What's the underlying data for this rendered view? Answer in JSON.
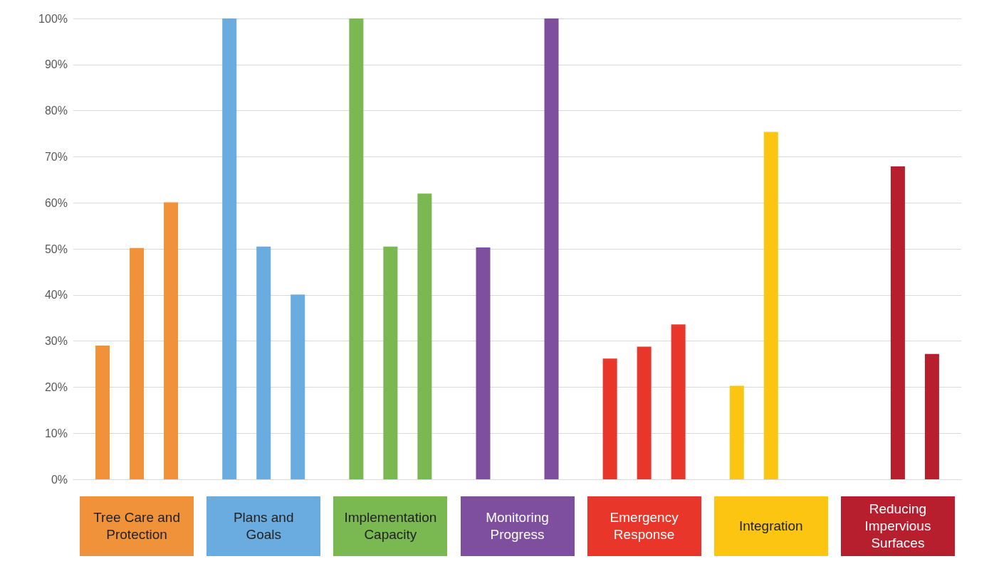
{
  "chart_data": {
    "type": "bar",
    "categories": [
      "Tree Care and\nProtection",
      "Plans and\nGoals",
      "Implementation\nCapacity",
      "Monitoring\nProgress",
      "Emergency\nResponse",
      "Integration",
      "Reducing\nImpervious\nSurfaces"
    ],
    "series": [
      {
        "colors": [
          "#f0923a",
          "#6aace0",
          "#7ab851",
          "#7d4f9e",
          "#e8372a",
          "#fcc512",
          "#b81f2e"
        ],
        "values": [
          29,
          100,
          100,
          50.3,
          26.2,
          20.3,
          null
        ]
      },
      {
        "colors": [
          "#f0923a",
          "#6aace0",
          "#7ab851",
          "#7d4f9e",
          "#e8372a",
          "#fcc512",
          "#b81f2e"
        ],
        "values": [
          50.2,
          50.5,
          50.5,
          null,
          28.8,
          75.4,
          67.9
        ]
      },
      {
        "colors": [
          "#f0923a",
          "#6aace0",
          "#7ab851",
          "#7d4f9e",
          "#e8372a",
          "#fcc512",
          "#b81f2e"
        ],
        "values": [
          60.1,
          40.1,
          62,
          100,
          33.6,
          null,
          27.2
        ]
      }
    ],
    "ylim": [
      0,
      100
    ],
    "yticks": [
      {
        "value": 0,
        "label": "0%"
      },
      {
        "value": 10,
        "label": "10%"
      },
      {
        "value": 20,
        "label": "20%"
      },
      {
        "value": 30,
        "label": "30%"
      },
      {
        "value": 40,
        "label": "40%"
      },
      {
        "value": 50,
        "label": "50%"
      },
      {
        "value": 60,
        "label": "60%"
      },
      {
        "value": 70,
        "label": "70%"
      },
      {
        "value": 80,
        "label": "80%"
      },
      {
        "value": 90,
        "label": "90%"
      },
      {
        "value": 100,
        "label": "100%"
      }
    ],
    "grid": "y"
  }
}
